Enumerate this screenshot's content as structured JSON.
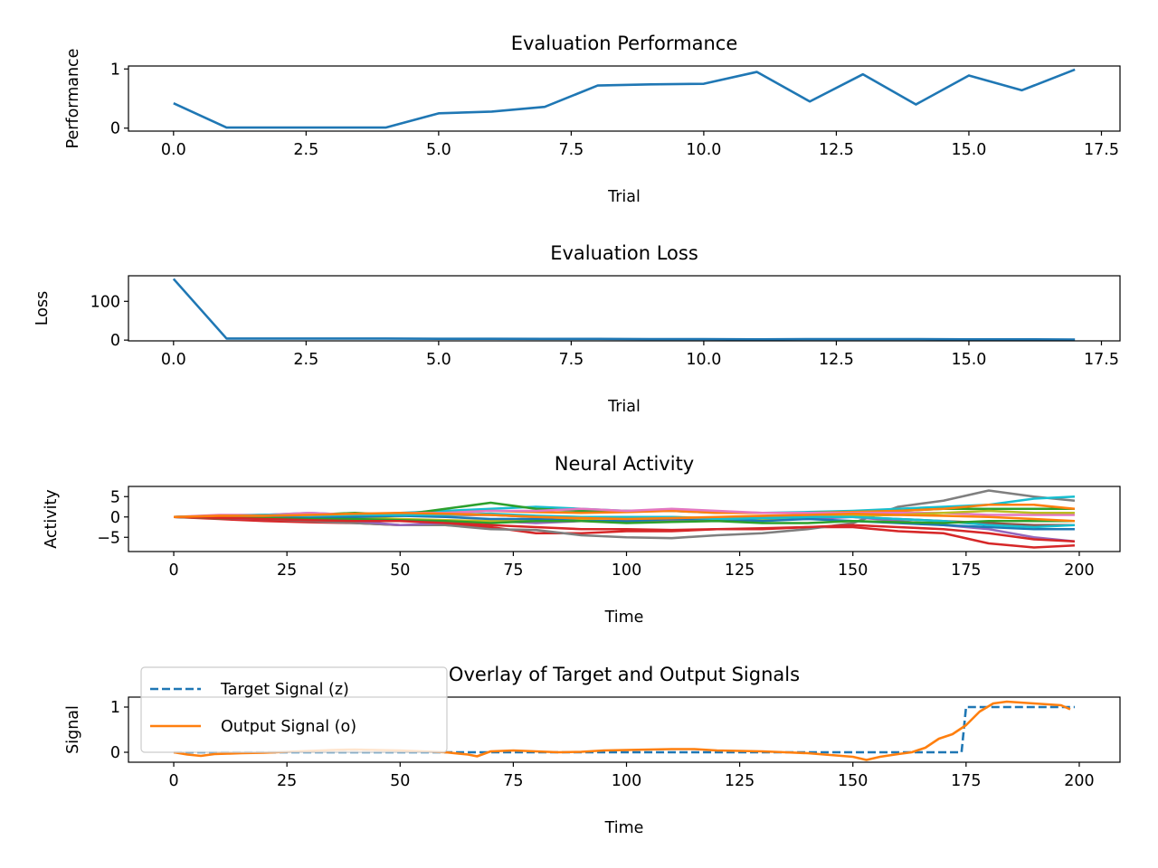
{
  "chart_data": [
    {
      "type": "line",
      "title": "Evaluation Performance",
      "xlabel": "Trial",
      "ylabel": "Performance",
      "xlim": [
        -0.85,
        17.85
      ],
      "ylim": [
        -0.05,
        1.05
      ],
      "xticks": [
        0.0,
        2.5,
        5.0,
        7.5,
        10.0,
        12.5,
        15.0,
        17.5
      ],
      "xtick_labels": [
        "0.0",
        "2.5",
        "5.0",
        "7.5",
        "10.0",
        "12.5",
        "15.0",
        "17.5"
      ],
      "yticks": [
        0,
        1
      ],
      "ytick_labels": [
        "0",
        "1"
      ],
      "series": [
        {
          "color": "#1f77b4",
          "style": "solid",
          "x": [
            0,
            1,
            2,
            3,
            4,
            5,
            6,
            7,
            8,
            9,
            10,
            11,
            12,
            13,
            14,
            15,
            16,
            17
          ],
          "y": [
            0.42,
            0.01,
            0.01,
            0.01,
            0.01,
            0.25,
            0.28,
            0.36,
            0.72,
            0.74,
            0.75,
            0.95,
            0.45,
            0.91,
            0.4,
            0.89,
            0.64,
            0.99
          ]
        }
      ]
    },
    {
      "type": "line",
      "title": "Evaluation Loss",
      "xlabel": "Trial",
      "ylabel": "Loss",
      "xlim": [
        -0.85,
        17.85
      ],
      "ylim": [
        -2,
        166
      ],
      "xticks": [
        0.0,
        2.5,
        5.0,
        7.5,
        10.0,
        12.5,
        15.0,
        17.5
      ],
      "xtick_labels": [
        "0.0",
        "2.5",
        "5.0",
        "7.5",
        "10.0",
        "12.5",
        "15.0",
        "17.5"
      ],
      "yticks": [
        0,
        100
      ],
      "ytick_labels": [
        "0",
        "100"
      ],
      "series": [
        {
          "color": "#1f77b4",
          "style": "solid",
          "x": [
            0,
            1,
            2,
            3,
            4,
            5,
            6,
            7,
            8,
            9,
            10,
            11,
            12,
            13,
            14,
            15,
            16,
            17
          ],
          "y": [
            158,
            4,
            4,
            4,
            4,
            3.5,
            3.5,
            3,
            3,
            2.5,
            2.5,
            2,
            2.5,
            2.5,
            2.5,
            2,
            2,
            1.5
          ]
        }
      ]
    },
    {
      "type": "line",
      "title": "Neural Activity",
      "xlabel": "Time",
      "ylabel": "Activity",
      "xlim": [
        -10,
        209
      ],
      "ylim": [
        -8.5,
        7.5
      ],
      "xticks": [
        0,
        25,
        50,
        75,
        100,
        125,
        150,
        175,
        200
      ],
      "xtick_labels": [
        "0",
        "25",
        "50",
        "75",
        "100",
        "125",
        "150",
        "175",
        "200"
      ],
      "yticks": [
        5,
        0,
        -5
      ],
      "ytick_labels": [
        "5",
        "0",
        "−5"
      ],
      "x": [
        0,
        10,
        20,
        30,
        40,
        50,
        60,
        70,
        80,
        90,
        100,
        110,
        120,
        130,
        140,
        150,
        160,
        170,
        180,
        190,
        199
      ],
      "series": [
        {
          "color": "#d62728",
          "y": [
            0,
            -0.5,
            -1,
            -1.3,
            -1.5,
            -2,
            -2,
            -2.5,
            -4,
            -4,
            -3.5,
            -3.5,
            -3,
            -3,
            -2.5,
            -2.5,
            -3.5,
            -4,
            -6.5,
            -7.5,
            -7
          ]
        },
        {
          "color": "#7f7f7f",
          "y": [
            0,
            0,
            -0.5,
            -1,
            -1.5,
            -2,
            -2,
            -3,
            -3.2,
            -4.5,
            -5,
            -5.2,
            -4.5,
            -4,
            -3,
            -1.5,
            2.5,
            4,
            6.5,
            5,
            4
          ]
        },
        {
          "color": "#17becf",
          "y": [
            0,
            0.3,
            0.5,
            1,
            0.5,
            1,
            1.5,
            2,
            2.5,
            2,
            1.5,
            1.5,
            1,
            1,
            1.2,
            1.5,
            2,
            2.5,
            3,
            4.5,
            5
          ]
        },
        {
          "color": "#2ca02c",
          "y": [
            0,
            0.3,
            0.5,
            0.5,
            1,
            0.5,
            2,
            3.5,
            2,
            1.5,
            1.5,
            1.5,
            1.2,
            1,
            1,
            1.2,
            1.5,
            2,
            2,
            2,
            2
          ]
        },
        {
          "color": "#ff7f0e",
          "y": [
            0,
            0,
            -0.3,
            0,
            0.3,
            0.5,
            1,
            1.5,
            1.2,
            1,
            1.2,
            1.5,
            1,
            1,
            1,
            1.2,
            1.5,
            2,
            3,
            3,
            2
          ]
        },
        {
          "color": "#e377c2",
          "y": [
            0,
            0.5,
            0.5,
            1,
            0.5,
            1,
            1,
            1.5,
            1.5,
            2,
            1.5,
            2,
            1.5,
            1,
            1,
            1,
            1,
            1,
            0.5,
            0.5,
            0.5
          ]
        },
        {
          "color": "#9467bd",
          "y": [
            0,
            -0.3,
            -0.5,
            -0.3,
            -1,
            -2,
            -1.5,
            -1,
            -1.5,
            -1,
            -1,
            -0.8,
            -1,
            -0.5,
            -0.5,
            0,
            -1,
            -2,
            -3,
            -5,
            -6
          ]
        },
        {
          "color": "#8c564b",
          "y": [
            0,
            0.2,
            0,
            0.2,
            0.5,
            0.3,
            0.5,
            0.5,
            0,
            0,
            -0.5,
            -0.5,
            -0.3,
            0,
            0,
            0,
            -0.5,
            -1,
            -1.5,
            -2,
            -2
          ]
        },
        {
          "color": "#bcbd22",
          "y": [
            0,
            0,
            0.3,
            0.5,
            0,
            -0.5,
            -0.8,
            -1,
            -0.5,
            -0.5,
            -0.3,
            0,
            -0.3,
            -0.5,
            0,
            0.3,
            0.5,
            1,
            1.5,
            1,
            1
          ]
        },
        {
          "color": "#1f77b4",
          "y": [
            0,
            -0.2,
            -0.3,
            0,
            0,
            0.3,
            0,
            -0.5,
            -0.5,
            -1,
            -1,
            -0.5,
            -0.5,
            -1,
            -0.5,
            -1,
            -1.5,
            -2,
            -2.5,
            -3,
            -3
          ]
        },
        {
          "color": "#17becf",
          "y": [
            0,
            0.2,
            0.5,
            0.3,
            0.5,
            0.5,
            0.5,
            0.8,
            0.3,
            0,
            0,
            0,
            -0.5,
            -0.3,
            0,
            0,
            -0.5,
            -1,
            -2,
            -2.5,
            -2
          ]
        },
        {
          "color": "#2ca02c",
          "y": [
            0,
            -0.3,
            -0.3,
            -0.5,
            -0.5,
            -0.8,
            -1,
            -1.5,
            -1,
            -1,
            -1.5,
            -1.2,
            -1,
            -1.5,
            -1.5,
            -1,
            -1.3,
            -1.5,
            -1,
            -1,
            -1
          ]
        },
        {
          "color": "#d62728",
          "y": [
            0,
            -0.2,
            -0.5,
            -0.8,
            -1,
            -1,
            -1.5,
            -2,
            -2.5,
            -3,
            -3,
            -3.2,
            -3,
            -2.8,
            -2.5,
            -2,
            -2.5,
            -3,
            -4,
            -5.5,
            -6
          ]
        },
        {
          "color": "#ff7f0e",
          "y": [
            0,
            0.3,
            0.3,
            0.5,
            0.8,
            1,
            0.8,
            0.5,
            0,
            -0.3,
            -0.5,
            -0.3,
            0,
            0.3,
            0.5,
            0.8,
            0.5,
            0.3,
            0,
            -0.5,
            -1
          ]
        }
      ]
    },
    {
      "type": "line",
      "title": "Overlay of Target and Output Signals",
      "xlabel": "Time",
      "ylabel": "Signal",
      "xlim": [
        -10,
        209
      ],
      "ylim": [
        -0.22,
        1.22
      ],
      "xticks": [
        0,
        25,
        50,
        75,
        100,
        125,
        150,
        175,
        200
      ],
      "xtick_labels": [
        "0",
        "25",
        "50",
        "75",
        "100",
        "125",
        "150",
        "175",
        "200"
      ],
      "yticks": [
        1,
        0
      ],
      "ytick_labels": [
        "1",
        "0"
      ],
      "legend": {
        "placement": "upper-left",
        "entries": [
          "Target Signal (z)",
          "Output Signal (o)"
        ]
      },
      "series": [
        {
          "name": "Target Signal (z)",
          "color": "#1f77b4",
          "style": "dashed",
          "x": [
            0,
            174,
            175,
            199
          ],
          "y": [
            0,
            0,
            1,
            1
          ]
        },
        {
          "name": "Output Signal (o)",
          "color": "#ff7f0e",
          "style": "solid",
          "x": [
            0,
            3,
            6,
            9,
            12,
            15,
            20,
            25,
            30,
            35,
            40,
            45,
            50,
            55,
            60,
            65,
            67,
            70,
            75,
            80,
            85,
            90,
            95,
            100,
            105,
            110,
            115,
            120,
            125,
            130,
            135,
            140,
            145,
            150,
            153,
            156,
            160,
            163,
            166,
            169,
            172,
            175,
            178,
            181,
            184,
            187,
            190,
            193,
            196,
            198
          ],
          "y": [
            0,
            -0.05,
            -0.08,
            -0.04,
            -0.03,
            -0.02,
            -0.01,
            0.01,
            0.03,
            0.05,
            0.06,
            0.05,
            0.04,
            0.02,
            0.0,
            -0.05,
            -0.09,
            0.02,
            0.04,
            0.02,
            0.0,
            0.01,
            0.04,
            0.05,
            0.06,
            0.07,
            0.07,
            0.04,
            0.03,
            0.02,
            0.0,
            -0.02,
            -0.06,
            -0.1,
            -0.17,
            -0.1,
            -0.04,
            0.0,
            0.1,
            0.3,
            0.4,
            0.6,
            0.9,
            1.08,
            1.12,
            1.1,
            1.08,
            1.06,
            1.04,
            0.95
          ]
        }
      ]
    }
  ]
}
